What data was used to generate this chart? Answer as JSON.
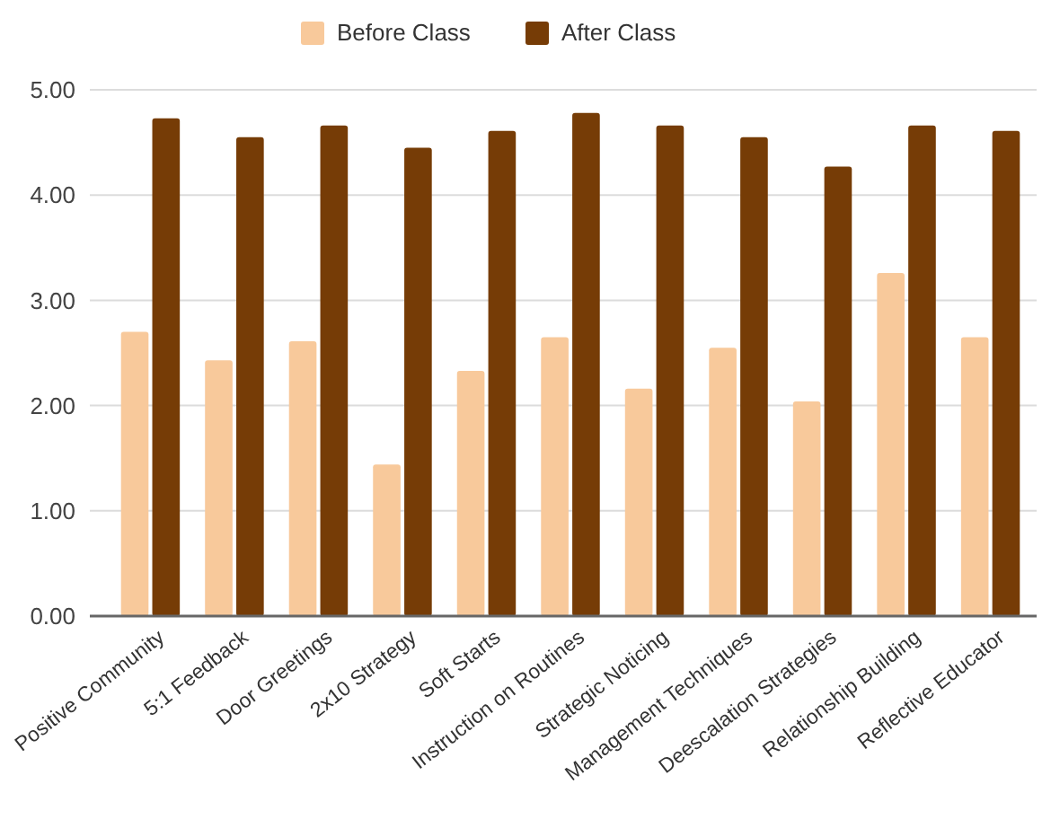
{
  "chart_data": {
    "type": "bar",
    "categories": [
      "Positive Community",
      "5:1 Feedback",
      "Door Greetings",
      "2x10 Strategy",
      "Soft Starts",
      "Instruction on Routines",
      "Strategic Noticing",
      "Management Techniques",
      "Deescalation Strategies",
      "Relationship Building",
      "Reflective Educator"
    ],
    "series": [
      {
        "name": "Before Class",
        "color": "#f8c99b",
        "values": [
          2.7,
          2.43,
          2.61,
          1.44,
          2.33,
          2.65,
          2.16,
          2.55,
          2.04,
          3.26,
          2.65
        ]
      },
      {
        "name": "After Class",
        "color": "#763c06",
        "values": [
          4.73,
          4.55,
          4.66,
          4.45,
          4.61,
          4.78,
          4.66,
          4.55,
          4.27,
          4.66,
          4.61
        ]
      }
    ],
    "ylim": [
      0,
      5
    ],
    "yticks": [
      {
        "value": 0,
        "label": "0.00"
      },
      {
        "value": 1,
        "label": "1.00"
      },
      {
        "value": 2,
        "label": "2.00"
      },
      {
        "value": 3,
        "label": "3.00"
      },
      {
        "value": 4,
        "label": "4.00"
      },
      {
        "value": 5,
        "label": "5.00"
      }
    ],
    "grid": "y",
    "legend": "top"
  }
}
